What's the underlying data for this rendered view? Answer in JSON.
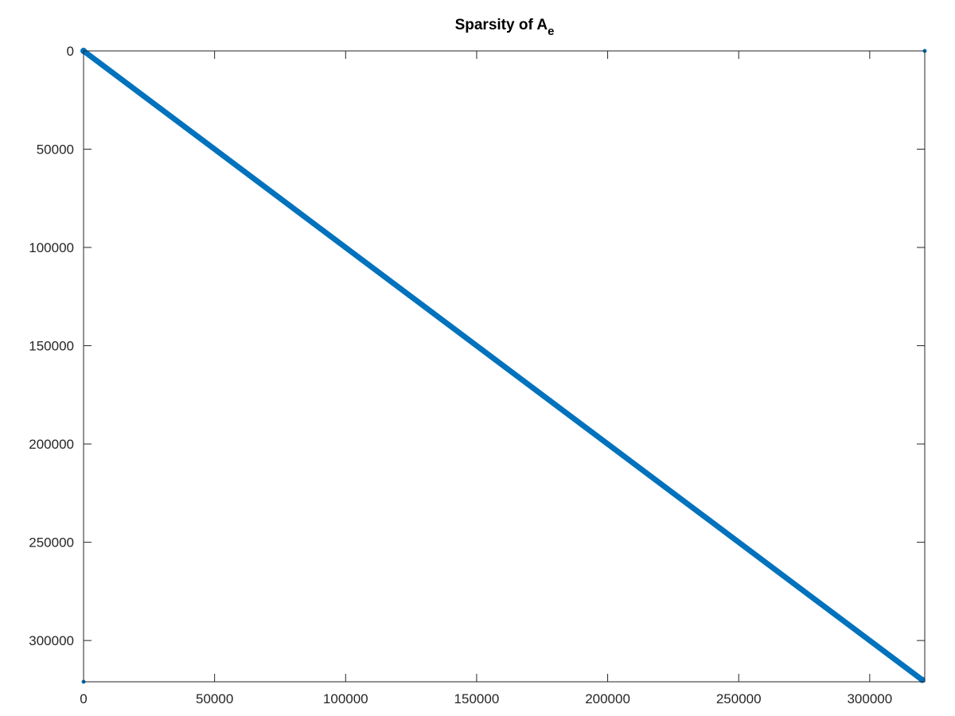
{
  "chart_data": {
    "type": "scatter",
    "title": "Sparsity of A",
    "title_subscript": "e",
    "xlabel": "",
    "ylabel": "",
    "xlim": [
      0,
      321000
    ],
    "ylim": [
      0,
      321000
    ],
    "y_axis_direction": "reversed",
    "grid": false,
    "x_ticks": [
      0,
      50000,
      100000,
      150000,
      200000,
      250000,
      300000
    ],
    "y_ticks": [
      0,
      50000,
      100000,
      150000,
      200000,
      250000,
      300000
    ],
    "x_tick_labels": [
      "0",
      "50000",
      "100000",
      "150000",
      "200000",
      "250000",
      "300000"
    ],
    "y_tick_labels": [
      "0",
      "50000",
      "100000",
      "150000",
      "200000",
      "250000",
      "300000"
    ],
    "series": [
      {
        "pattern": "diagonal",
        "points": [
          [
            0,
            0
          ],
          [
            320000,
            320000
          ]
        ],
        "color": "#0072bd"
      },
      {
        "pattern": "isolated",
        "points": [
          [
            0,
            321000
          ],
          [
            321000,
            0
          ]
        ],
        "color": "#0072bd"
      }
    ]
  }
}
